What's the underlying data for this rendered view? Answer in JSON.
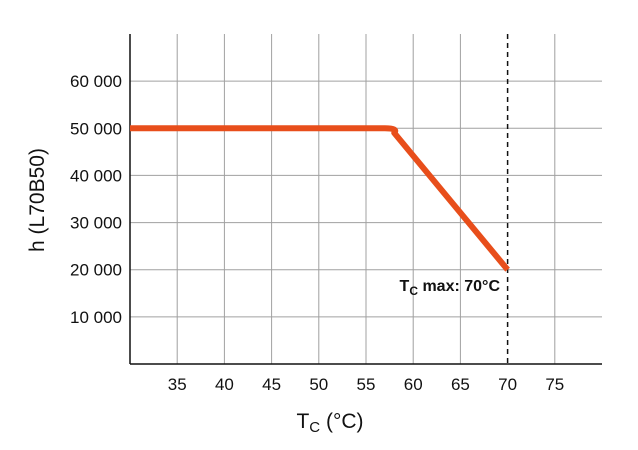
{
  "chart_data": {
    "type": "line",
    "xlabel": "T",
    "xlabel_sub": "C",
    "xlabel_unit": " (°C)",
    "ylabel": "h (L70B50)",
    "xlim": [
      30,
      80
    ],
    "ylim": [
      0,
      70000
    ],
    "x_ticks": [
      35,
      40,
      45,
      50,
      55,
      60,
      65,
      70,
      75
    ],
    "x_tick_labels": [
      "35",
      "40",
      "45",
      "50",
      "55",
      "60",
      "65",
      "70",
      "75"
    ],
    "y_ticks": [
      10000,
      20000,
      30000,
      40000,
      50000,
      60000
    ],
    "y_tick_labels": [
      "10 000",
      "20 000",
      "30 000",
      "40 000",
      "50 000",
      "60 000"
    ],
    "grid": true,
    "series": [
      {
        "color": "#e84e1b",
        "x": [
          30,
          57,
          58,
          70
        ],
        "y": [
          50000,
          50000,
          49000,
          20000
        ]
      }
    ],
    "vline": {
      "x": 70,
      "style": "dashed"
    },
    "annotation": {
      "prefix": "T",
      "sub": "C",
      "text": " max: 70°C"
    }
  }
}
